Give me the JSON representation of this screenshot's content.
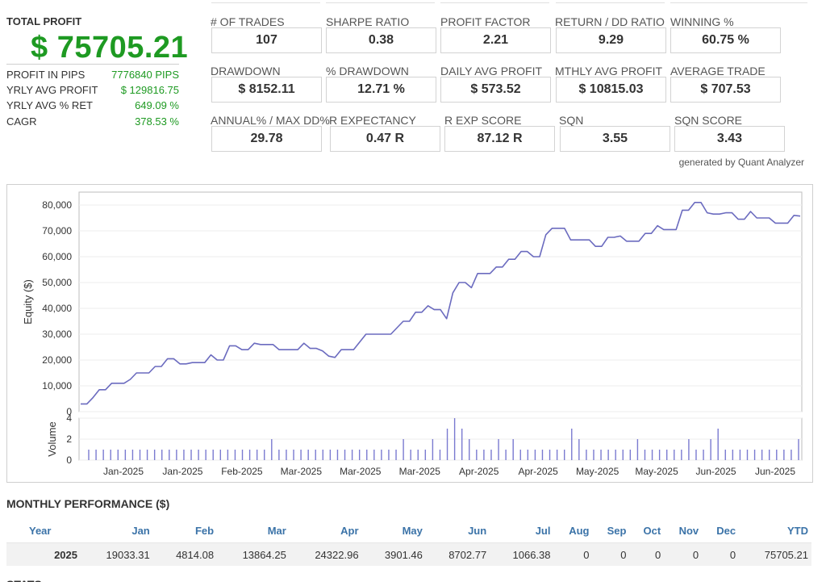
{
  "summary": {
    "total_profit_label": "TOTAL PROFIT",
    "total_profit_value": "$ 75705.21",
    "rows": [
      {
        "label": "PROFIT IN PIPS",
        "value": "7776840 PIPS"
      },
      {
        "label": "YRLY AVG PROFIT",
        "value": "$ 129816.75"
      },
      {
        "label": "YRLY AVG % RET",
        "value": "649.09 %"
      },
      {
        "label": "CAGR",
        "value": "378.53 %"
      }
    ]
  },
  "metrics": {
    "row1": [
      {
        "label": "# OF TRADES",
        "value": "107"
      },
      {
        "label": "SHARPE RATIO",
        "value": "0.38"
      },
      {
        "label": "PROFIT FACTOR",
        "value": "2.21"
      },
      {
        "label": "RETURN / DD RATIO",
        "value": "9.29"
      },
      {
        "label": "WINNING %",
        "value": "60.75 %"
      }
    ],
    "row2": [
      {
        "label": "DRAWDOWN",
        "value": "$ 8152.11"
      },
      {
        "label": "% DRAWDOWN",
        "value": "12.71 %"
      },
      {
        "label": "DAILY AVG PROFIT",
        "value": "$ 573.52"
      },
      {
        "label": "MTHLY AVG PROFIT",
        "value": "$ 10815.03"
      },
      {
        "label": "AVERAGE TRADE",
        "value": "$ 707.53"
      }
    ],
    "row3": [
      {
        "label": "ANNUAL% / MAX DD%",
        "value": "29.78"
      },
      {
        "label": "R EXPECTANCY",
        "value": "0.47 R"
      },
      {
        "label": "R EXP SCORE",
        "value": "87.12 R"
      },
      {
        "label": "SQN",
        "value": "3.55"
      },
      {
        "label": "SQN SCORE",
        "value": "3.43"
      }
    ],
    "generated_by": "generated by Quant Analyzer"
  },
  "chart_data": [
    {
      "type": "line",
      "ylabel": "Equity ($)",
      "ylim": [
        0,
        85000
      ],
      "yticks": [
        0,
        10000,
        20000,
        30000,
        40000,
        50000,
        60000,
        70000,
        80000
      ],
      "ytick_labels": [
        "0",
        "10,000",
        "20,000",
        "30,000",
        "40,000",
        "50,000",
        "60,000",
        "70,000",
        "80,000"
      ],
      "series": [
        {
          "values": [
            3000,
            3000,
            5500,
            8500,
            8500,
            11000,
            11000,
            11000,
            12500,
            15000,
            15000,
            15000,
            17500,
            17500,
            20500,
            20500,
            18500,
            18500,
            19000,
            19000,
            19000,
            22000,
            20000,
            20000,
            25500,
            25500,
            24000,
            24000,
            26500,
            26000,
            26000,
            26000,
            24000,
            24000,
            24000,
            24000,
            26500,
            24500,
            24500,
            23500,
            21500,
            21000,
            24000,
            24000,
            24000,
            27000,
            30000,
            30000,
            30000,
            30000,
            30000,
            32500,
            35000,
            35000,
            38500,
            38500,
            41000,
            39500,
            39500,
            36000,
            46000,
            50000,
            50000,
            48000,
            53500,
            53500,
            53500,
            56000,
            56000,
            59000,
            59000,
            62000,
            62000,
            60000,
            60000,
            68500,
            71000,
            71000,
            71000,
            66500,
            66500,
            66500,
            66500,
            64000,
            64000,
            67500,
            67500,
            68000,
            66000,
            66000,
            66000,
            69000,
            69000,
            72000,
            70500,
            70500,
            70500,
            78000,
            78000,
            81000,
            81000,
            77000,
            76500,
            76500,
            77000,
            77000,
            74500,
            74500,
            77500,
            75000,
            75000,
            75000,
            73000,
            73000,
            73000,
            76000,
            75705
          ]
        }
      ],
      "grid": true
    },
    {
      "type": "bar",
      "ylabel": "Volume",
      "ylim": [
        0,
        4
      ],
      "yticks": [
        0,
        2,
        4
      ],
      "x_tick_labels": [
        "Jan-2025",
        "Jan-2025",
        "Feb-2025",
        "Mar-2025",
        "Mar-2025",
        "Mar-2025",
        "Apr-2025",
        "Apr-2025",
        "May-2025",
        "May-2025",
        "Jun-2025",
        "Jun-2025"
      ],
      "values": [
        1,
        1,
        1,
        1,
        1,
        1,
        1,
        1,
        1,
        1,
        1,
        1,
        1,
        1,
        1,
        1,
        1,
        1,
        1,
        1,
        1,
        1,
        1,
        1,
        1,
        2,
        1,
        1,
        1,
        1,
        1,
        1,
        1,
        1,
        1,
        1,
        1,
        1,
        1,
        1,
        1,
        1,
        1,
        2,
        1,
        1,
        1,
        2,
        1,
        3,
        4,
        3,
        2,
        1,
        1,
        1,
        2,
        1,
        2,
        1,
        1,
        1,
        1,
        1,
        1,
        1,
        3,
        2,
        1,
        1,
        1,
        1,
        1,
        1,
        1,
        2,
        1,
        1,
        1,
        1,
        1,
        1,
        2,
        1,
        1,
        2,
        3,
        1,
        1,
        1,
        1,
        1,
        1,
        1,
        1,
        1,
        1,
        2
      ]
    }
  ],
  "monthly": {
    "title": "MONTHLY PERFORMANCE ($)",
    "headers": [
      "Year",
      "Jan",
      "Feb",
      "Mar",
      "Apr",
      "May",
      "Jun",
      "Jul",
      "Aug",
      "Sep",
      "Oct",
      "Nov",
      "Dec",
      "YTD"
    ],
    "rows": [
      [
        "2025",
        "19033.31",
        "4814.08",
        "13864.25",
        "24322.96",
        "3901.46",
        "8702.77",
        "1066.38",
        "0",
        "0",
        "0",
        "0",
        "0",
        "75705.21"
      ]
    ]
  },
  "next_section_title": "STATS"
}
